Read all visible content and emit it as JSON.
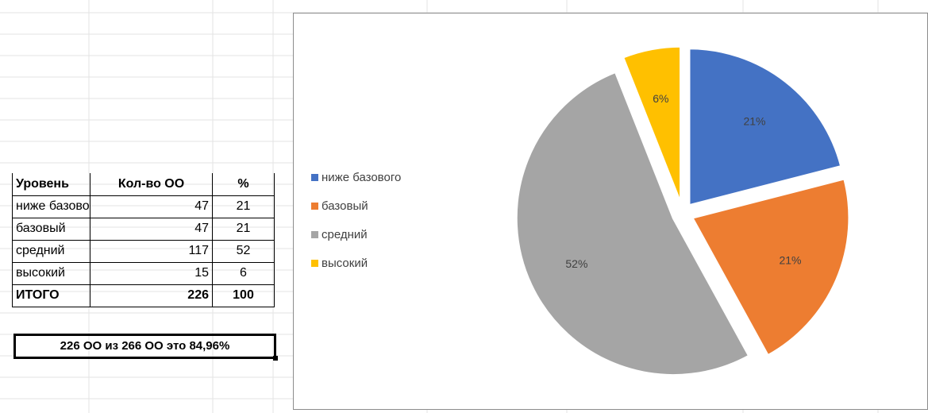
{
  "table": {
    "header": [
      "Уровень",
      "Кол-во ОО",
      "%"
    ],
    "rows": [
      {
        "level": "ниже базового",
        "count": "47",
        "pct": "21"
      },
      {
        "level": "базовый",
        "count": "47",
        "pct": "21"
      },
      {
        "level": "средний",
        "count": "117",
        "pct": "52"
      },
      {
        "level": "высокий",
        "count": "15",
        "pct": "6"
      }
    ],
    "total": {
      "level": "ИТОГО",
      "count": "226",
      "pct": "100"
    }
  },
  "note": "226 ОО из 266 ОО это 84,96%",
  "chart_data": {
    "type": "pie",
    "categories": [
      "ниже базового",
      "базовый",
      "средний",
      "высокий"
    ],
    "values": [
      21,
      21,
      52,
      6
    ],
    "labels": [
      "21%",
      "21%",
      "52%",
      "6%"
    ],
    "colors": [
      "#4472c4",
      "#ed7d31",
      "#a5a5a5",
      "#ffc000"
    ],
    "exploded": true,
    "legend_position": "left"
  }
}
